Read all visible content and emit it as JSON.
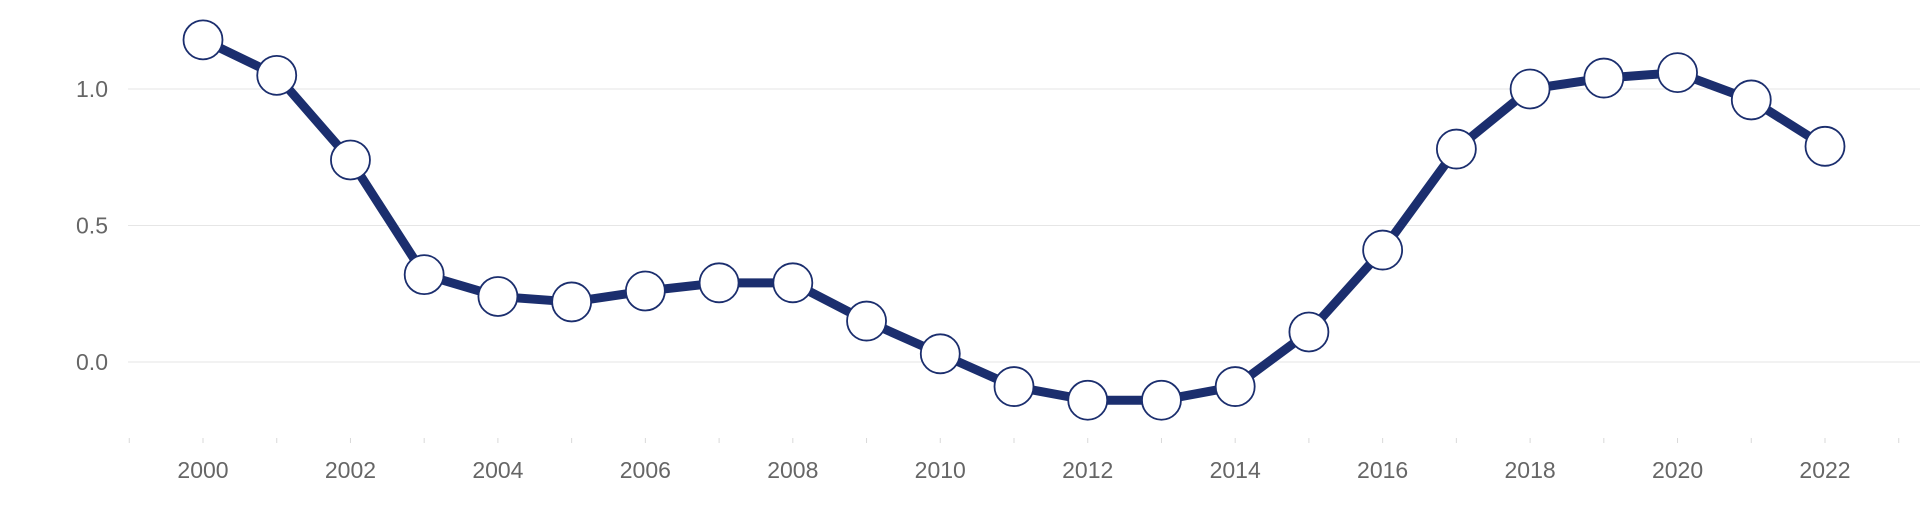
{
  "chart_data": {
    "type": "line",
    "title": "",
    "xlabel": "",
    "ylabel": "",
    "x": [
      2000,
      2001,
      2002,
      2003,
      2004,
      2005,
      2006,
      2007,
      2008,
      2009,
      2010,
      2011,
      2012,
      2013,
      2014,
      2015,
      2016,
      2017,
      2018,
      2019,
      2020,
      2021,
      2022
    ],
    "series": [
      {
        "values": [
          1.18,
          1.05,
          0.74,
          0.32,
          0.24,
          0.22,
          0.26,
          0.29,
          0.29,
          0.15,
          0.03,
          -0.09,
          -0.14,
          -0.14,
          -0.09,
          0.11,
          0.41,
          0.78,
          1.0,
          1.04,
          1.06,
          0.96,
          0.79
        ]
      }
    ],
    "x_tick_labels": [
      "2000",
      "2002",
      "2004",
      "2006",
      "2008",
      "2010",
      "2012",
      "2014",
      "2016",
      "2018",
      "2020",
      "2022"
    ],
    "y_tick_labels": [
      "0.0",
      "0.5",
      "1.0"
    ],
    "xlim": [
      1999,
      2023
    ],
    "ylim": [
      -0.3,
      1.25
    ],
    "grid": true,
    "legend": "none",
    "colors": {
      "line": "#1b2e6e",
      "marker_fill": "#ffffff",
      "marker_stroke": "#1b2e6e"
    }
  }
}
